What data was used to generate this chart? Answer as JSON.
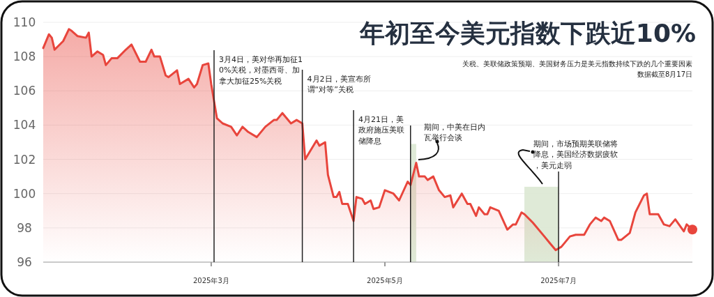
{
  "chart_data": {
    "type": "area",
    "title": "年初至今美元指数下跌近10%",
    "subtitle": "关税、美联储政策预期、美国财务压力是美元指数持续下跌的几个重要因素",
    "annotations": [
      "数据截至8月17日"
    ],
    "xlim": [
      "2025-01-01",
      "2025-08-17"
    ],
    "ylim": [
      96,
      110
    ],
    "yticks": [
      96,
      98,
      100,
      102,
      104,
      106,
      108,
      110
    ],
    "xticks": [
      {
        "value": "2025-03-01",
        "label": "2025年3月"
      },
      {
        "value": "2025-05-01",
        "label": "2025年5月"
      },
      {
        "value": "2025-07-01",
        "label": "2025年7月"
      }
    ],
    "grid": "y",
    "x": [
      "2025-01-01",
      "2025-01-03",
      "2025-01-04",
      "2025-01-05",
      "2025-01-08",
      "2025-01-10",
      "2025-01-11",
      "2025-01-13",
      "2025-01-16",
      "2025-01-17",
      "2025-01-18",
      "2025-01-20",
      "2025-01-22",
      "2025-01-23",
      "2025-01-25",
      "2025-01-27",
      "2025-01-30",
      "2025-02-01",
      "2025-02-04",
      "2025-02-06",
      "2025-02-08",
      "2025-02-09",
      "2025-02-11",
      "2025-02-13",
      "2025-02-14",
      "2025-02-17",
      "2025-02-18",
      "2025-02-21",
      "2025-02-23",
      "2025-02-24",
      "2025-02-26",
      "2025-02-28",
      "2025-03-01",
      "2025-03-03",
      "2025-03-05",
      "2025-03-08",
      "2025-03-10",
      "2025-03-12",
      "2025-03-14",
      "2025-03-17",
      "2025-03-20",
      "2025-03-23",
      "2025-03-24",
      "2025-03-26",
      "2025-03-29",
      "2025-03-31",
      "2025-04-02",
      "2025-04-03",
      "2025-04-07",
      "2025-04-08",
      "2025-04-10",
      "2025-04-11",
      "2025-04-13",
      "2025-04-14",
      "2025-04-15",
      "2025-04-16",
      "2025-04-18",
      "2025-04-20",
      "2025-04-21",
      "2025-04-23",
      "2025-04-24",
      "2025-04-26",
      "2025-04-27",
      "2025-04-29",
      "2025-05-01",
      "2025-05-04",
      "2025-05-06",
      "2025-05-09",
      "2025-05-10",
      "2025-05-12",
      "2025-05-13",
      "2025-05-15",
      "2025-05-16",
      "2025-05-18",
      "2025-05-20",
      "2025-05-22",
      "2025-05-24",
      "2025-05-25",
      "2025-05-28",
      "2025-05-30",
      "2025-05-31",
      "2025-06-02",
      "2025-06-03",
      "2025-06-05",
      "2025-06-06",
      "2025-06-07",
      "2025-06-10",
      "2025-06-13",
      "2025-06-15",
      "2025-06-16",
      "2025-06-18",
      "2025-06-19",
      "2025-06-22",
      "2025-06-26",
      "2025-06-28",
      "2025-06-30",
      "2025-07-02",
      "2025-07-05",
      "2025-07-07",
      "2025-07-10",
      "2025-07-12",
      "2025-07-14",
      "2025-07-16",
      "2025-07-17",
      "2025-07-19",
      "2025-07-22",
      "2025-07-23",
      "2025-07-26",
      "2025-07-28",
      "2025-07-31",
      "2025-08-01",
      "2025-08-02",
      "2025-08-05",
      "2025-08-07",
      "2025-08-09",
      "2025-08-11",
      "2025-08-14",
      "2025-08-15",
      "2025-08-17"
    ],
    "series": [
      {
        "color": "#e8453c",
        "values": [
          108.5,
          109.3,
          109.1,
          108.4,
          108.9,
          109.6,
          109.5,
          109.2,
          109.1,
          109.4,
          108.0,
          108.3,
          108.1,
          107.5,
          107.9,
          107.9,
          108.4,
          108.7,
          107.7,
          107.7,
          108.4,
          108.0,
          108.0,
          106.9,
          106.8,
          107.2,
          106.4,
          106.7,
          106.2,
          106.4,
          107.5,
          107.6,
          106.4,
          104.4,
          104.1,
          103.9,
          103.4,
          103.9,
          103.6,
          103.3,
          103.9,
          104.3,
          104.3,
          104.7,
          104.1,
          104.3,
          104.1,
          102.0,
          103.1,
          102.8,
          103.0,
          101.1,
          99.8,
          99.8,
          100.1,
          99.4,
          99.4,
          98.4,
          99.8,
          99.7,
          99.4,
          99.6,
          99.1,
          99.2,
          100.2,
          100.0,
          99.6,
          100.7,
          100.5,
          101.8,
          101.0,
          101.0,
          100.8,
          101.0,
          100.2,
          99.8,
          99.9,
          99.2,
          100.0,
          99.4,
          99.4,
          98.7,
          99.2,
          98.8,
          98.8,
          99.2,
          99.0,
          97.9,
          98.2,
          98.2,
          98.9,
          98.8,
          98.3,
          97.5,
          97.1,
          96.7,
          96.9,
          97.5,
          97.6,
          97.6,
          98.2,
          98.6,
          98.4,
          98.6,
          98.4,
          97.3,
          97.3,
          97.7,
          98.9,
          99.9,
          100.0,
          98.8,
          98.8,
          98.2,
          98.1,
          98.5,
          97.8,
          98.2,
          97.9
        ]
      }
    ],
    "ref_lines": [
      {
        "axis": "x",
        "value": "2025-03-02",
        "label": "3月4日，美对华再加征10%关税，对墨西哥、加拿大加征25%关税",
        "color": "#222222"
      },
      {
        "axis": "x",
        "value": "2025-04-02",
        "label": "4月2日，美宣布所谓“对等”关税",
        "color": "#222222"
      },
      {
        "axis": "x",
        "value": "2025-04-20",
        "label": "4月21日，美政府施压美联储降息",
        "color": "#222222"
      },
      {
        "axis": "x",
        "value": "2025-05-10",
        "color": "#222222"
      },
      {
        "axis": "x",
        "value": "2025-07-01",
        "color": "#222222"
      }
    ],
    "bands": [
      {
        "axis": "x",
        "from": "2025-05-10",
        "to": "2025-05-12",
        "label": "期间，中美在日内瓦举行会谈",
        "color": "#dbe8d3"
      },
      {
        "axis": "x",
        "from": "2025-06-19",
        "to": "2025-07-01",
        "label": "期间，市场预期美联储将降息，美国经济数据疲软，美元走弱",
        "color": "#dbe8d3"
      }
    ]
  }
}
